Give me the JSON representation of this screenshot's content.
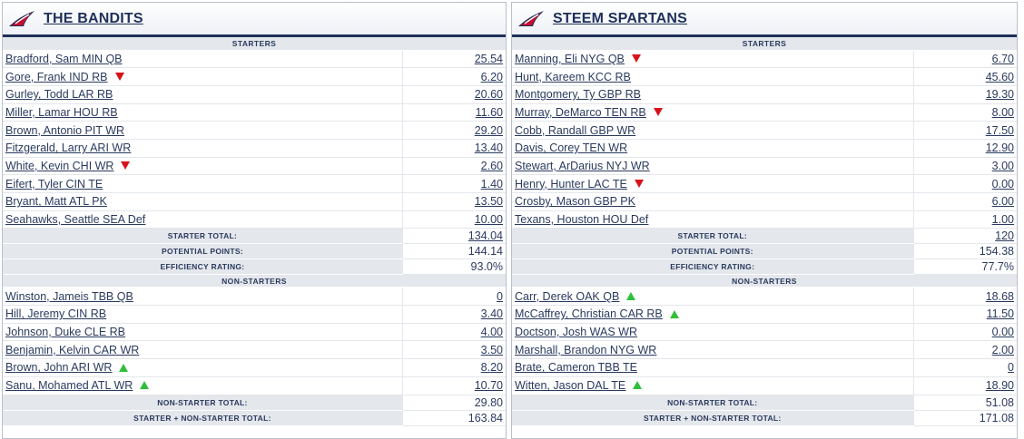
{
  "teams": [
    {
      "name": "THE BANDITS",
      "starters_label": "STARTERS",
      "starters": [
        {
          "player": "Bradford, Sam MIN QB",
          "points": "25.54",
          "trend": ""
        },
        {
          "player": "Gore, Frank IND RB",
          "points": "6.20",
          "trend": "down"
        },
        {
          "player": "Gurley, Todd LAR RB",
          "points": "20.60",
          "trend": ""
        },
        {
          "player": "Miller, Lamar HOU RB",
          "points": "11.60",
          "trend": ""
        },
        {
          "player": "Brown, Antonio PIT WR",
          "points": "29.20",
          "trend": ""
        },
        {
          "player": "Fitzgerald, Larry ARI WR",
          "points": "13.40",
          "trend": ""
        },
        {
          "player": "White, Kevin CHI WR",
          "points": "2.60",
          "trend": "down"
        },
        {
          "player": "Eifert, Tyler CIN TE",
          "points": "1.40",
          "trend": ""
        },
        {
          "player": "Bryant, Matt ATL PK",
          "points": "13.50",
          "trend": ""
        },
        {
          "player": "Seahawks, Seattle SEA Def",
          "points": "10.00",
          "trend": ""
        }
      ],
      "starter_total_label": "STARTER TOTAL:",
      "starter_total": "134.04",
      "potential_label": "POTENTIAL POINTS:",
      "potential": "144.14",
      "efficiency_label": "EFFICIENCY RATING:",
      "efficiency": "93.0%",
      "nonstarters_label": "NON-STARTERS",
      "nonstarters": [
        {
          "player": "Winston, Jameis TBB QB",
          "points": "0",
          "trend": ""
        },
        {
          "player": "Hill, Jeremy CIN RB",
          "points": "3.40",
          "trend": ""
        },
        {
          "player": "Johnson, Duke CLE RB",
          "points": "4.00",
          "trend": ""
        },
        {
          "player": "Benjamin, Kelvin CAR WR",
          "points": "3.50",
          "trend": ""
        },
        {
          "player": "Brown, John ARI WR",
          "points": "8.20",
          "trend": "up"
        },
        {
          "player": "Sanu, Mohamed ATL WR",
          "points": "10.70",
          "trend": "up"
        }
      ],
      "nonstarter_total_label": "NON-STARTER TOTAL:",
      "nonstarter_total": "29.80",
      "combined_label": "STARTER + NON-STARTER TOTAL:",
      "combined_total": "163.84"
    },
    {
      "name": "STEEM SPARTANS",
      "starters_label": "STARTERS",
      "starters": [
        {
          "player": "Manning, Eli NYG QB",
          "points": "6.70",
          "trend": "down"
        },
        {
          "player": "Hunt, Kareem KCC RB",
          "points": "45.60",
          "trend": ""
        },
        {
          "player": "Montgomery, Ty GBP RB",
          "points": "19.30",
          "trend": ""
        },
        {
          "player": "Murray, DeMarco TEN RB",
          "points": "8.00",
          "trend": "down"
        },
        {
          "player": "Cobb, Randall GBP WR",
          "points": "17.50",
          "trend": ""
        },
        {
          "player": "Davis, Corey TEN WR",
          "points": "12.90",
          "trend": ""
        },
        {
          "player": "Stewart, ArDarius NYJ WR",
          "points": "3.00",
          "trend": ""
        },
        {
          "player": "Henry, Hunter LAC TE",
          "points": "0.00",
          "trend": "down"
        },
        {
          "player": "Crosby, Mason GBP PK",
          "points": "6.00",
          "trend": ""
        },
        {
          "player": "Texans, Houston HOU Def",
          "points": "1.00",
          "trend": ""
        }
      ],
      "starter_total_label": "STARTER TOTAL:",
      "starter_total": "120",
      "potential_label": "POTENTIAL POINTS:",
      "potential": "154.38",
      "efficiency_label": "EFFICIENCY RATING:",
      "efficiency": "77.7%",
      "nonstarters_label": "NON-STARTERS",
      "nonstarters": [
        {
          "player": "Carr, Derek OAK QB",
          "points": "18.68",
          "trend": "up"
        },
        {
          "player": "McCaffrey, Christian CAR RB",
          "points": "11.50",
          "trend": "up"
        },
        {
          "player": "Doctson, Josh WAS WR",
          "points": "0.00",
          "trend": ""
        },
        {
          "player": "Marshall, Brandon NYG WR",
          "points": "2.00",
          "trend": ""
        },
        {
          "player": "Brate, Cameron TBB TE",
          "points": "0",
          "trend": ""
        },
        {
          "player": "Witten, Jason DAL TE",
          "points": "18.90",
          "trend": "up"
        }
      ],
      "nonstarter_total_label": "NON-STARTER TOTAL:",
      "nonstarter_total": "51.08",
      "combined_label": "STARTER + NON-STARTER TOTAL:",
      "combined_total": "171.08"
    }
  ],
  "colors": {
    "navy": "#1e2f5a",
    "down_arrow": "#d9121a",
    "up_arrow": "#2fbf3a",
    "label_bg": "#e4e7ec"
  },
  "icons": {
    "team_logo": "nfl-shield-logo-icon",
    "trend_down": "red-down-triangle-icon",
    "trend_up": "green-up-triangle-icon"
  }
}
